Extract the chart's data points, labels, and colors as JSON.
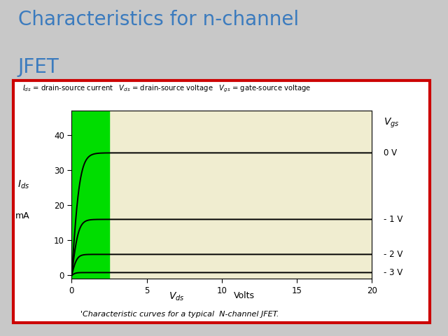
{
  "title_line1": "Characteristics for n-channel",
  "title_line2": "JFET",
  "title_color": "#3B7BBE",
  "title_fontsize": 20,
  "background_color": "#C8C8C8",
  "plot_bg_color": "#F0EDD0",
  "green_color": "#00DD00",
  "green_xmax": 2.5,
  "xlim": [
    0,
    20
  ],
  "ylim": [
    -1,
    47
  ],
  "x_ticks": [
    0,
    5,
    10,
    15,
    20
  ],
  "y_ticks": [
    0,
    10,
    20,
    30,
    40
  ],
  "curves": [
    {
      "Idss": 35.0,
      "Vknee": 0.55,
      "label": "0 V"
    },
    {
      "Idss": 16.0,
      "Vknee": 0.45,
      "label": "- 1 V"
    },
    {
      "Idss": 6.0,
      "Vknee": 0.35,
      "label": "- 2 V"
    },
    {
      "Idss": 0.8,
      "Vknee": 0.25,
      "label": "- 3 V"
    }
  ],
  "outer_box_color": "#CC0000",
  "header_text": "$I_{ds}$ = drain-source current   $V_{ds}$ = drain-source voltage   $V_{gs}$ = gate-source voltage",
  "footer_text": "'Characteristic curves for a typical  N-channel JFET.",
  "vgs_label": "$V_{gs}$",
  "ids_label": "$I_{ds}$",
  "mA_label": "mA",
  "vds_label": "$V_{ds}$",
  "volts_label": "Volts"
}
